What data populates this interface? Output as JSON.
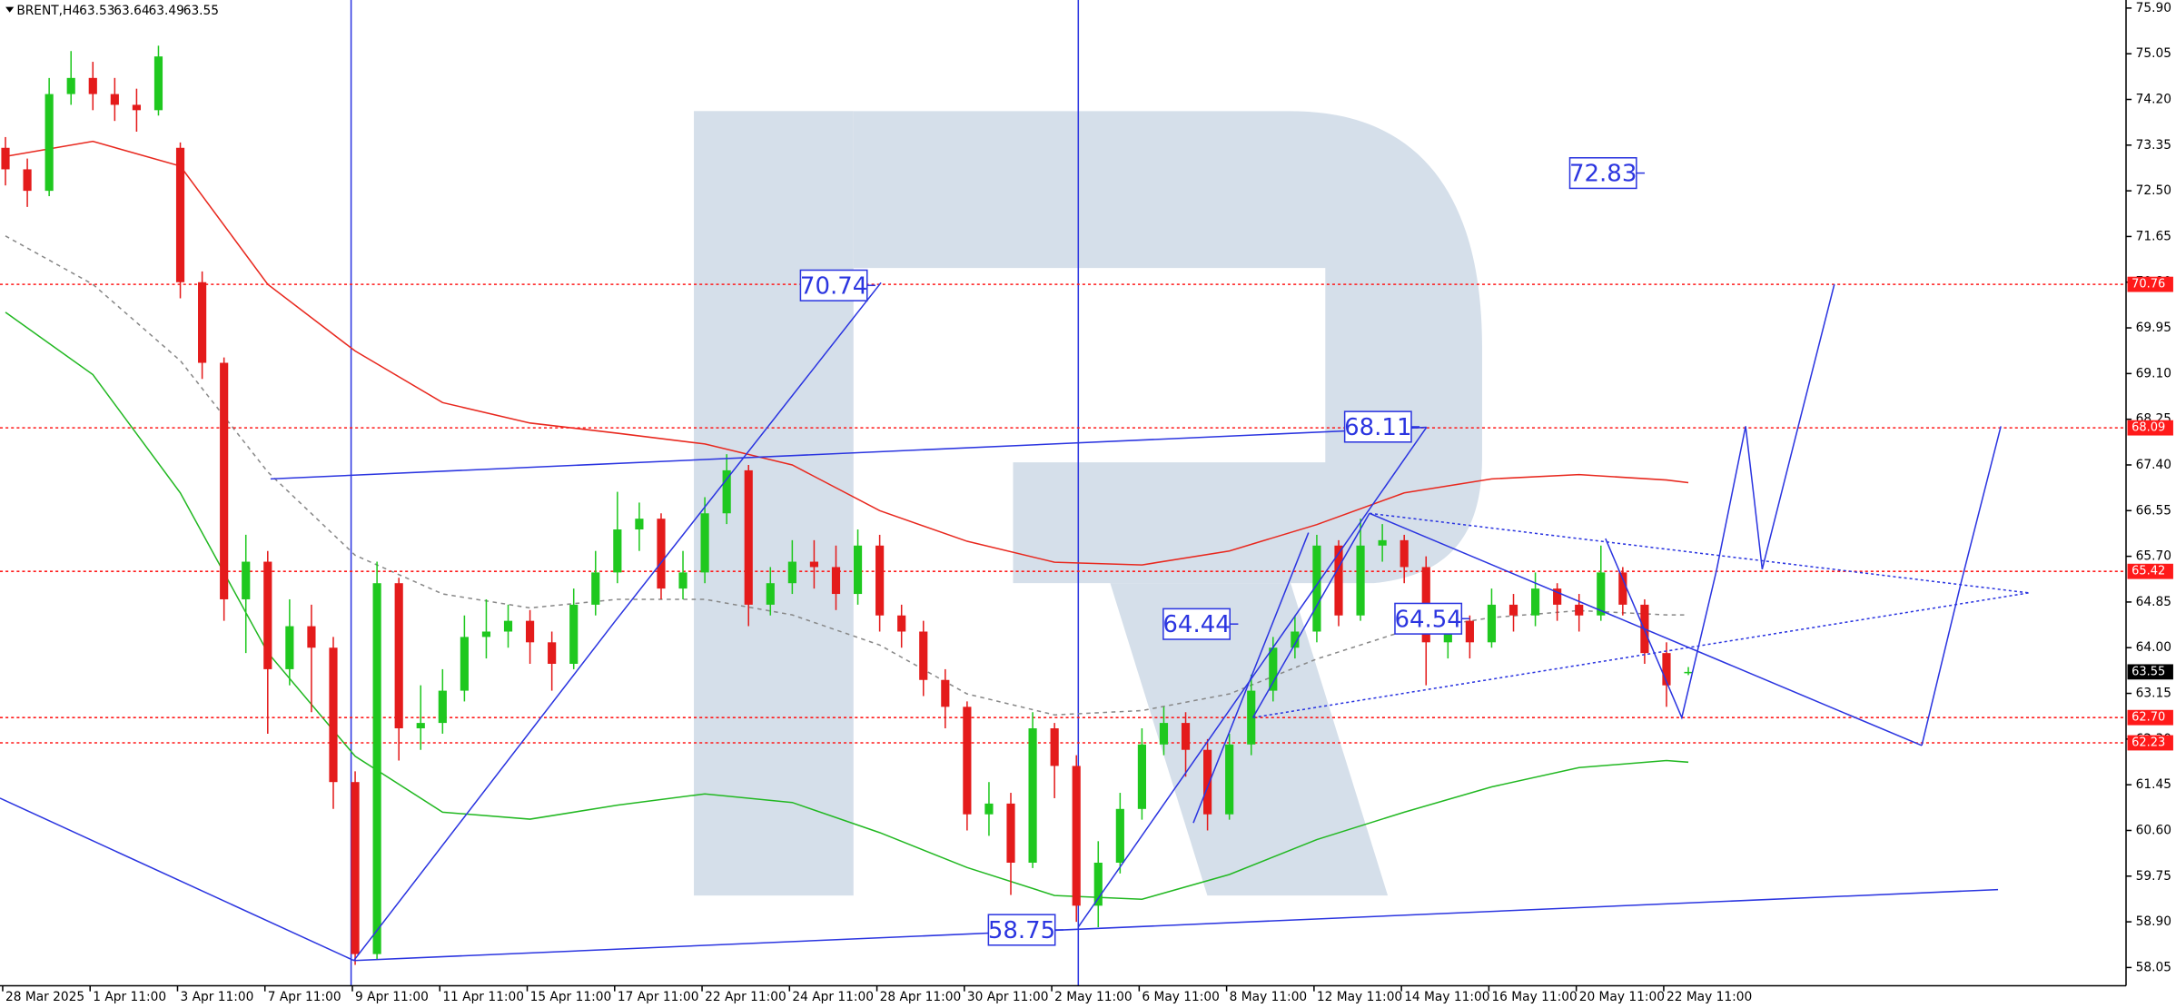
{
  "header": {
    "symbol": "BRENT,H4"
  },
  "chart_data": {
    "type": "candlestick",
    "up_color": "#1fc81f",
    "down_color": "#e41b1b",
    "x": [
      0,
      1,
      2,
      3,
      4,
      5,
      6,
      7,
      8,
      9,
      10,
      11,
      12,
      13,
      14,
      15,
      16,
      17,
      18,
      19,
      20,
      21,
      22,
      23,
      24,
      25,
      26,
      27,
      28,
      29,
      30,
      31,
      32,
      33,
      34,
      35,
      36,
      37,
      38,
      39,
      40,
      41,
      42,
      43,
      44,
      45,
      46,
      47,
      48,
      49,
      50,
      51,
      52,
      53,
      54,
      55,
      56,
      57,
      58,
      59,
      60,
      61,
      62,
      63,
      64,
      65,
      66,
      67,
      68,
      69,
      70,
      71,
      72,
      73,
      74,
      75,
      76,
      77
    ],
    "open": [
      73.3,
      72.9,
      72.5,
      74.3,
      74.6,
      74.3,
      74.1,
      74.0,
      73.3,
      70.8,
      69.3,
      64.9,
      65.6,
      63.6,
      64.4,
      64.0,
      61.5,
      58.3,
      65.2,
      62.5,
      62.6,
      63.2,
      64.2,
      64.3,
      64.5,
      64.1,
      63.7,
      64.8,
      65.4,
      66.2,
      66.4,
      65.1,
      65.4,
      66.5,
      67.3,
      64.8,
      65.2,
      65.6,
      65.5,
      65.0,
      65.9,
      64.6,
      64.3,
      63.4,
      62.9,
      60.9,
      61.1,
      60.0,
      62.5,
      61.8,
      59.2,
      60.0,
      61.0,
      62.2,
      62.6,
      62.1,
      60.9,
      62.2,
      63.2,
      64.0,
      64.3,
      65.9,
      64.6,
      65.9,
      66.0,
      65.5,
      64.1,
      64.5,
      64.1,
      64.8,
      64.6,
      65.1,
      64.8,
      64.6,
      65.4,
      64.8,
      63.9,
      63.53
    ],
    "high": [
      73.5,
      73.1,
      74.6,
      75.1,
      74.9,
      74.6,
      74.4,
      75.2,
      73.4,
      71.0,
      69.4,
      66.1,
      65.8,
      64.9,
      64.8,
      64.2,
      61.7,
      65.6,
      65.3,
      63.3,
      63.6,
      64.6,
      64.9,
      64.8,
      64.7,
      64.3,
      65.1,
      65.8,
      66.9,
      66.7,
      66.5,
      65.8,
      66.8,
      67.6,
      67.4,
      65.5,
      66.0,
      66.0,
      65.9,
      66.2,
      66.1,
      64.8,
      64.5,
      63.6,
      63.0,
      61.5,
      61.3,
      62.8,
      62.6,
      62.0,
      60.4,
      61.3,
      62.5,
      62.9,
      62.8,
      62.3,
      62.4,
      63.5,
      64.2,
      64.6,
      66.1,
      66.0,
      66.4,
      66.3,
      66.1,
      65.7,
      64.8,
      64.6,
      65.1,
      65.0,
      65.4,
      65.2,
      65.0,
      65.9,
      65.5,
      64.9,
      64.1,
      63.64
    ],
    "low": [
      72.6,
      72.2,
      72.4,
      74.1,
      74.0,
      73.8,
      73.6,
      73.9,
      70.5,
      69.0,
      64.5,
      63.9,
      62.4,
      63.3,
      62.8,
      61.0,
      58.1,
      58.2,
      61.9,
      62.1,
      62.4,
      63.0,
      63.8,
      64.0,
      63.7,
      63.2,
      63.6,
      64.6,
      65.2,
      65.8,
      64.9,
      64.9,
      65.2,
      66.3,
      64.4,
      64.6,
      65.0,
      65.1,
      64.7,
      64.8,
      64.3,
      64.0,
      63.1,
      62.5,
      60.6,
      60.5,
      59.4,
      59.9,
      61.2,
      58.9,
      58.8,
      59.8,
      60.8,
      62.0,
      61.6,
      60.6,
      60.8,
      62.0,
      63.0,
      63.8,
      64.1,
      64.4,
      64.5,
      65.6,
      65.2,
      63.3,
      63.8,
      63.8,
      64.0,
      64.3,
      64.4,
      64.5,
      64.3,
      64.5,
      64.6,
      63.7,
      62.9,
      63.49
    ],
    "close": [
      72.9,
      72.5,
      74.3,
      74.6,
      74.3,
      74.1,
      74.0,
      75.0,
      70.8,
      69.3,
      64.9,
      65.6,
      63.6,
      64.4,
      64.0,
      61.5,
      58.3,
      65.2,
      62.5,
      62.6,
      63.2,
      64.2,
      64.3,
      64.5,
      64.1,
      63.7,
      64.8,
      65.4,
      66.2,
      66.4,
      65.1,
      65.4,
      66.5,
      67.3,
      64.8,
      65.2,
      65.6,
      65.5,
      65.0,
      65.9,
      64.6,
      64.3,
      63.4,
      62.9,
      60.9,
      61.1,
      60.0,
      62.5,
      61.8,
      59.2,
      60.0,
      61.0,
      62.2,
      62.6,
      62.1,
      60.9,
      62.2,
      63.2,
      64.0,
      64.3,
      65.9,
      64.6,
      65.9,
      66.0,
      65.5,
      64.1,
      64.5,
      64.1,
      64.8,
      64.6,
      65.1,
      64.8,
      64.6,
      65.4,
      64.8,
      63.9,
      63.3,
      63.55
    ],
    "xlim": [
      -0.25,
      96.9
    ],
    "xticks": [
      {
        "value": 0,
        "label": "28 Mar 2025"
      },
      {
        "value": 4,
        "label": "1 Apr 11:00"
      },
      {
        "value": 8,
        "label": "3 Apr 11:00"
      },
      {
        "value": 12,
        "label": "7 Apr 11:00"
      },
      {
        "value": 16,
        "label": "9 Apr 11:00"
      },
      {
        "value": 20,
        "label": "11 Apr 11:00"
      },
      {
        "value": 24,
        "label": "15 Apr 11:00"
      },
      {
        "value": 28,
        "label": "17 Apr 11:00"
      },
      {
        "value": 32,
        "label": "22 Apr 11:00"
      },
      {
        "value": 36,
        "label": "24 Apr 11:00"
      },
      {
        "value": 40,
        "label": "28 Apr 11:00"
      },
      {
        "value": 44,
        "label": "30 Apr 11:00"
      },
      {
        "value": 48,
        "label": "2 May 11:00"
      },
      {
        "value": 52,
        "label": "6 May 11:00"
      },
      {
        "value": 56,
        "label": "8 May 11:00"
      },
      {
        "value": 60,
        "label": "12 May 11:00"
      },
      {
        "value": 64,
        "label": "14 May 11:00"
      },
      {
        "value": 68,
        "label": "16 May 11:00"
      },
      {
        "value": 72,
        "label": "20 May 11:00"
      },
      {
        "value": 76,
        "label": "22 May 11:00"
      }
    ],
    "ylim": [
      57.71,
      76.05
    ],
    "yticks": [
      58.05,
      {
        "value": 58.9,
        "label": "58.90"
      },
      59.75,
      {
        "value": 60.6,
        "label": "60.60"
      },
      61.45,
      {
        "value": 62.3,
        "label": "62.30"
      },
      63.15,
      {
        "value": 64,
        "label": "64.00"
      },
      64.85,
      {
        "value": 65.7,
        "label": "65.70"
      },
      66.55,
      {
        "value": 67.4,
        "label": "67.40"
      },
      68.25,
      {
        "value": 69.1,
        "label": "69.10"
      },
      69.95,
      {
        "value": 70.8,
        "label": "70.80"
      },
      71.65,
      {
        "value": 72.5,
        "label": "72.50"
      },
      73.35,
      {
        "value": 74.2,
        "label": "74.20"
      },
      75.05,
      {
        "value": 75.9,
        "label": "75.90"
      }
    ],
    "lines": [
      {
        "color": "#e8281e",
        "dashed": false,
        "x": [
          0,
          4,
          8,
          12,
          16,
          20,
          24,
          28,
          32,
          36,
          40,
          44,
          48,
          52,
          56,
          60,
          64,
          68,
          72,
          76,
          77
        ],
        "values": [
          73.14,
          73.42,
          72.96,
          70.76,
          69.52,
          68.56,
          68.18,
          67.99,
          67.79,
          67.4,
          66.55,
          65.98,
          65.59,
          65.54,
          65.8,
          66.29,
          66.88,
          67.14,
          67.22,
          67.12,
          67.07
        ]
      },
      {
        "color": "#22b822",
        "dashed": false,
        "x": [
          0,
          4,
          8,
          12,
          16,
          20,
          24,
          28,
          32,
          36,
          40,
          44,
          48,
          52,
          56,
          60,
          64,
          68,
          72,
          76,
          77
        ],
        "values": [
          70.24,
          69.08,
          66.88,
          63.91,
          61.98,
          60.94,
          60.81,
          61.07,
          61.28,
          61.12,
          60.56,
          59.91,
          59.39,
          59.32,
          59.78,
          60.43,
          60.94,
          61.41,
          61.77,
          61.9,
          61.87
        ]
      },
      {
        "color": "#888888",
        "dashed": true,
        "x": [
          0,
          4,
          8,
          12,
          16,
          20,
          24,
          28,
          32,
          36,
          40,
          44,
          48,
          52,
          56,
          60,
          64,
          68,
          72,
          76,
          77
        ],
        "values": [
          71.66,
          70.76,
          69.34,
          67.27,
          65.72,
          65.0,
          64.74,
          64.9,
          64.9,
          64.61,
          64.05,
          63.14,
          62.75,
          62.83,
          63.14,
          63.79,
          64.31,
          64.56,
          64.69,
          64.61,
          64.61
        ]
      }
    ],
    "levels": [
      70.76,
      68.09,
      65.42,
      {
        "value": 62.7,
        "label": "62.70"
      },
      62.23
    ],
    "level_color": "#ff1a1a",
    "last_price": 63.55,
    "drawing_color": "#2b35e0",
    "drawings": [
      {
        "dashed": false,
        "x": [
          -0.25,
          15.94
        ],
        "y": [
          61.2,
          58.18
        ]
      },
      {
        "dashed": false,
        "x": [
          15.94,
          91.17
        ],
        "y": [
          58.18,
          59.5
        ]
      },
      {
        "dashed": false,
        "x": [
          15.94,
          27.87,
          40.06
        ],
        "y": [
          58.18,
          64.48,
          70.79
        ]
      },
      {
        "dashed": false,
        "x": [
          12.13,
          65.02
        ],
        "y": [
          67.14,
          68.1
        ]
      },
      {
        "dashed": false,
        "x": [
          49.08,
          65.02
        ],
        "y": [
          58.8,
          68.1
        ]
      },
      {
        "dashed": false,
        "x": [
          54.35,
          59.62
        ],
        "y": [
          60.74,
          66.14
        ]
      },
      {
        "dashed": false,
        "x": [
          57.08,
          62.41
        ],
        "y": [
          62.7,
          66.5
        ]
      },
      {
        "dashed": false,
        "x": [
          62.41,
          87.68
        ],
        "y": [
          66.5,
          62.18
        ]
      },
      {
        "dashed": true,
        "x": [
          62.41,
          92.57
        ],
        "y": [
          66.5,
          65.02
        ]
      },
      {
        "dashed": true,
        "x": [
          57.08,
          92.57
        ],
        "y": [
          62.7,
          65.02
        ]
      },
      {
        "dashed": false,
        "x": [
          73.21,
          76.7,
          78.29,
          79.62,
          80.0,
          80.38,
          82.03,
          83.68
        ],
        "y": [
          66.03,
          62.7,
          65.44,
          68.12,
          66.81,
          65.46,
          68.12,
          70.76
        ]
      },
      {
        "dashed": false,
        "x": [
          87.68,
          89.46,
          91.3
        ],
        "y": [
          62.18,
          65.18,
          68.12
        ]
      }
    ],
    "annotations": [
      {
        "x": 37.9,
        "value": 70.74
      },
      {
        "x": 62.8,
        "value": 68.11
      },
      {
        "x": 54.5,
        "value": 64.44
      },
      {
        "x": 65.1,
        "value": 64.54
      },
      {
        "x": 73.1,
        "value": 72.83
      },
      {
        "x": 46.5,
        "value": 58.75
      }
    ]
  }
}
